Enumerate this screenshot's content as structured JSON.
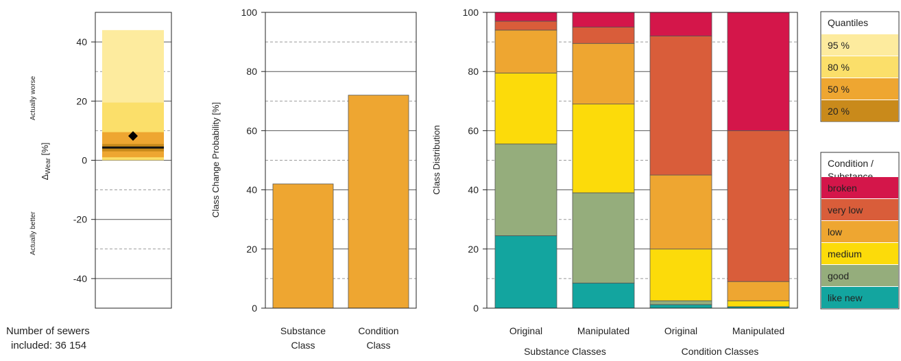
{
  "chart_data": [
    {
      "id": "wear",
      "type": "box",
      "ylabel_prefix": "Δ",
      "ylabel_sub": "Wear",
      "ylabel_suffix": " [%]",
      "upper_note": "Actually worse",
      "lower_note": "Actually better",
      "yticks": [
        "40",
        "20",
        "0",
        "-20",
        "-40"
      ],
      "ylim": [
        -50,
        50
      ],
      "bands": [
        {
          "quantile": "95 %",
          "low": 0,
          "high": 44
        },
        {
          "quantile": "80 %",
          "low": 0,
          "high": 19.5
        },
        {
          "quantile": "50 %",
          "low": 1,
          "high": 9.5
        },
        {
          "quantile": "20 %",
          "low": 3,
          "high": 5.5
        }
      ],
      "median": 4.3,
      "mean": 8.2,
      "footnote_line1": "Number of sewers",
      "footnote_line2": "included: 36 154"
    },
    {
      "id": "change",
      "type": "bar",
      "ylabel": "Class Change Probability [%]",
      "yticks": [
        "100",
        "80",
        "60",
        "40",
        "20",
        "0"
      ],
      "ylim": [
        0,
        100
      ],
      "categories": [
        {
          "line1": "Substance",
          "line2": "Class"
        },
        {
          "line1": "Condition",
          "line2": "Class"
        }
      ],
      "values": [
        42,
        72
      ]
    },
    {
      "id": "distribution",
      "type": "stacked-bar",
      "ylabel": "Class Distribution",
      "yticks": [
        "100",
        "80",
        "60",
        "40",
        "20",
        "0"
      ],
      "ylim": [
        0,
        100
      ],
      "categories": [
        "Original",
        "Manipulated",
        "Original",
        "Manipulated"
      ],
      "groups": [
        "Substance Classes",
        "Condition Classes"
      ],
      "series": [
        {
          "name": "like new",
          "values": [
            24.5,
            8.5,
            1.2,
            0.5
          ]
        },
        {
          "name": "good",
          "values": [
            31,
            30.5,
            1.3,
            0
          ]
        },
        {
          "name": "medium",
          "values": [
            24,
            30,
            17.5,
            2
          ]
        },
        {
          "name": "low",
          "values": [
            14.5,
            20.5,
            25,
            6.5
          ]
        },
        {
          "name": "very low",
          "values": [
            3,
            5.5,
            47,
            51
          ]
        },
        {
          "name": "broken",
          "values": [
            3,
            5,
            8,
            40
          ]
        }
      ]
    }
  ],
  "legends": {
    "quantiles": {
      "title": "Quantiles",
      "items": [
        "95 %",
        "80 %",
        "50 %",
        "20 %"
      ]
    },
    "classes": {
      "title_line1": "Condition /",
      "title_line2": "Substance",
      "items": [
        "broken",
        "very low",
        "low",
        "medium",
        "good",
        "like new"
      ]
    }
  },
  "colors": {
    "q95": "#fdeb9e",
    "q80": "#fbdf6a",
    "q50": "#eea631",
    "q20": "#c98a1b",
    "bar": "#eea631",
    "broken": "#d4164a",
    "very low": "#d95d3a",
    "low": "#eea631",
    "medium": "#fcdb0a",
    "good": "#95ad7c",
    "like new": "#13a59f"
  }
}
